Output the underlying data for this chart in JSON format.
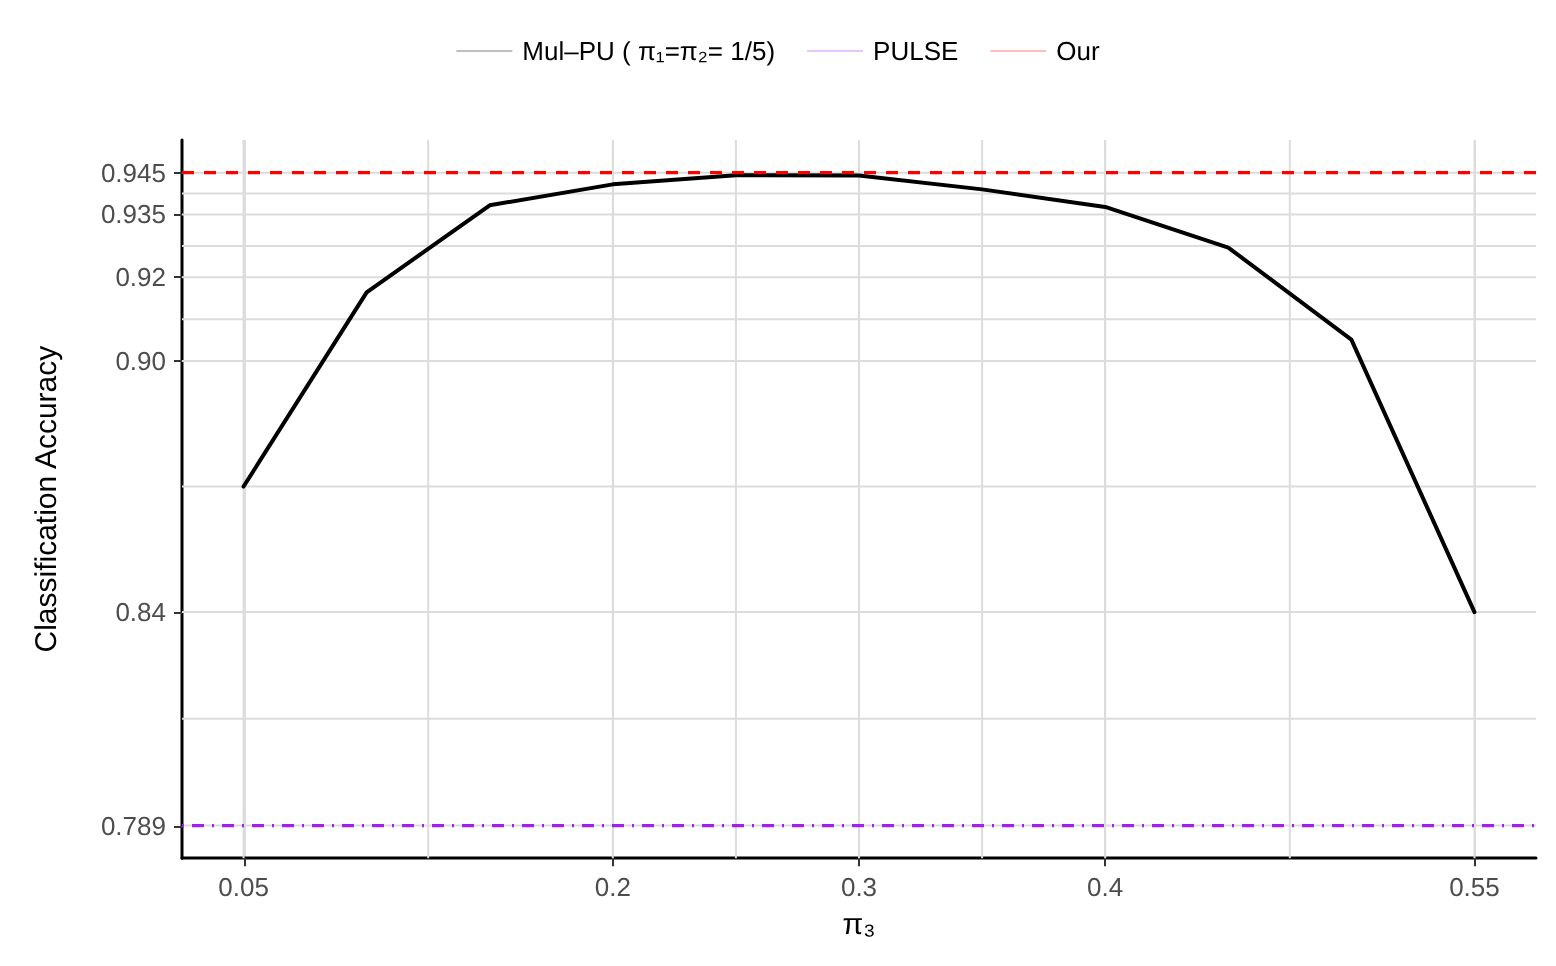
{
  "chart_data": {
    "type": "line",
    "xlabel": "π₃",
    "ylabel": "Classification Accuracy",
    "x": [
      0.05,
      0.1,
      0.15,
      0.2,
      0.25,
      0.3,
      0.35,
      0.4,
      0.45,
      0.5,
      0.55
    ],
    "series": [
      {
        "name": "Mul–PU ( π₁=π₂= 1/5)",
        "color": "#000000",
        "values": [
          0.87,
          0.9164,
          0.9372,
          0.9422,
          0.9444,
          0.9443,
          0.941,
          0.9368,
          0.9271,
          0.9051,
          0.84
        ]
      }
    ],
    "ref_lines": [
      {
        "axis": "y",
        "value": 0.789,
        "label": "PULSE",
        "color": "#a020f0",
        "line_style": "dashdot"
      },
      {
        "axis": "y",
        "value": 0.945,
        "label": "Our",
        "color": "#ff0000",
        "line_style": "dashed"
      }
    ],
    "xlim": [
      0.025,
      0.575
    ],
    "ylim": [
      0.7812,
      0.9528
    ],
    "xticks": [
      0.05,
      {
        "value": 0.125,
        "label": null
      },
      0.2,
      {
        "value": 0.25,
        "label": null
      },
      0.3,
      {
        "value": 0.35,
        "label": null
      },
      0.4,
      {
        "value": 0.475,
        "label": null
      },
      0.55
    ],
    "yticks": [
      0.789,
      {
        "value": 0.8145,
        "label": null
      },
      0.84,
      {
        "value": 0.87,
        "label": null
      },
      {
        "value": 0.9,
        "label": "0.90"
      },
      {
        "value": 0.91,
        "label": null
      },
      0.92,
      {
        "value": 0.9275,
        "label": null
      },
      0.935,
      {
        "value": 0.94,
        "label": null
      },
      0.945
    ],
    "grid": true,
    "legend": "top",
    "marker": "none",
    "line_style": "solid"
  }
}
